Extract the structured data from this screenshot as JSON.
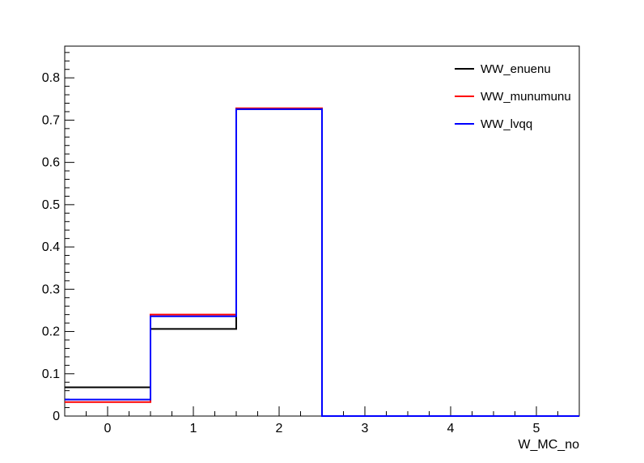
{
  "chart_data": {
    "type": "step",
    "xlabel": "W_MC_no",
    "ylabel": "",
    "title": "",
    "xlim": [
      -0.5,
      5.5
    ],
    "ylim": [
      0,
      0.875
    ],
    "x_ticks": [
      "0",
      "1",
      "2",
      "3",
      "4",
      "5"
    ],
    "y_ticks": [
      "0",
      "0.1",
      "0.2",
      "0.3",
      "0.4",
      "0.5",
      "0.6",
      "0.7",
      "0.8"
    ],
    "bin_edges": [
      -0.5,
      0.5,
      1.5,
      2.5,
      3.5,
      4.5,
      5.5
    ],
    "legend_position": "top-right",
    "grid": false,
    "series": [
      {
        "name": "WW_enuenu",
        "color": "#000000",
        "values": [
          0.068,
          0.206,
          0.726,
          0,
          0,
          0
        ]
      },
      {
        "name": "WW_munumunu",
        "color": "#ff0000",
        "values": [
          0.033,
          0.24,
          0.728,
          0,
          0,
          0
        ]
      },
      {
        "name": "WW_lvqq",
        "color": "#0000ff",
        "values": [
          0.039,
          0.236,
          0.726,
          0,
          0,
          0
        ]
      }
    ]
  }
}
